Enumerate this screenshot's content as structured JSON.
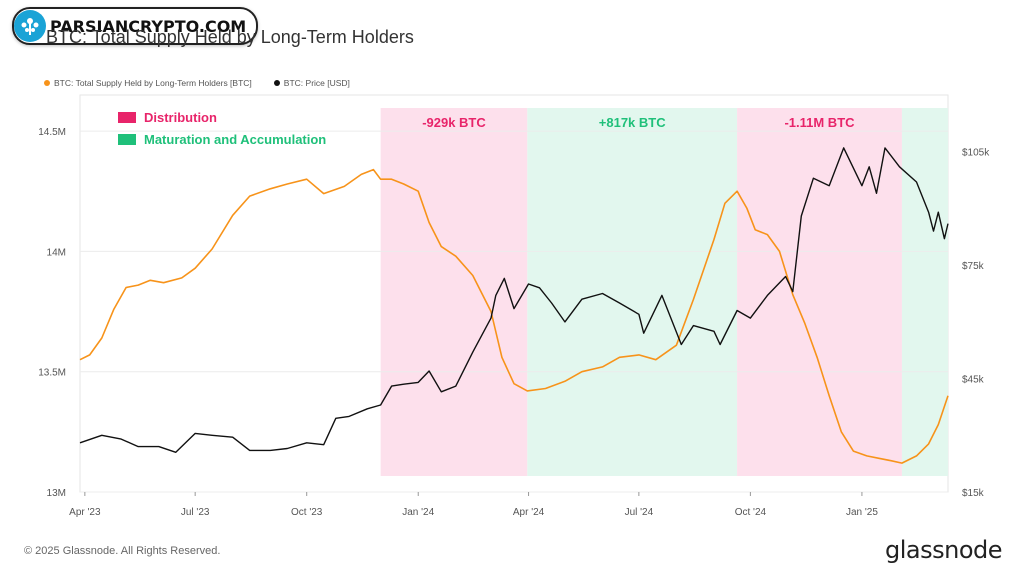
{
  "header": {
    "watermark_text": "PARSIANCRYPTO.COM",
    "title": "BTC: Total Supply Held by Long-Term Holders"
  },
  "legend": {
    "series_1": "BTC: Total Supply Held by Long-Term Holders [BTC]",
    "series_2": "BTC: Price [USD]"
  },
  "footer": {
    "copyright": "© 2025 Glassnode. All Rights Reserved.",
    "brand": "glassnode"
  },
  "colors": {
    "supply": "#f7931a",
    "price": "#111111",
    "distribution": "#fde0ec",
    "accumulation": "#e2f7ee",
    "distribution_text": "#e8246a",
    "accumulation_text": "#1fc07a"
  },
  "chart_data": {
    "type": "line",
    "title": "BTC: Total Supply Held by Long-Term Holders",
    "x_ticks": [
      "Apr '23",
      "Jul '23",
      "Oct '23",
      "Jan '24",
      "Apr '24",
      "Jul '24",
      "Oct '24",
      "Jan '25"
    ],
    "y_left_ticks": [
      "13M",
      "13.5M",
      "14M",
      "14.5M"
    ],
    "y_right_ticks": [
      "$15k",
      "$45k",
      "$75k",
      "$105k"
    ],
    "y_left_lim": [
      13000000,
      14650000
    ],
    "y_right_lim": [
      15000,
      120000
    ],
    "right_axis_scale": "linear",
    "x_range": [
      "2023-03-28",
      "2025-03-13"
    ],
    "legend_placement": "top-left",
    "box_legend": [
      {
        "label": "Distribution",
        "color": "#e8246a"
      },
      {
        "label": "Maturation and Accumulation",
        "color": "#1fc07a"
      }
    ],
    "regions": [
      {
        "type": "distribution",
        "start": "2023-12-01",
        "end": "2024-03-31",
        "label": "-929k BTC"
      },
      {
        "type": "accumulation",
        "start": "2024-03-31",
        "end": "2024-09-20",
        "label": "+817k BTC"
      },
      {
        "type": "distribution",
        "start": "2024-09-20",
        "end": "2025-02-03",
        "label": "-1.11M BTC"
      },
      {
        "type": "accumulation",
        "start": "2025-02-03",
        "end": "2025-03-13",
        "label": ""
      }
    ],
    "series": [
      {
        "name": "BTC: Total Supply Held by Long-Term Holders [BTC]",
        "axis": "left",
        "x": [
          "2023-03-28",
          "2023-04-05",
          "2023-04-15",
          "2023-04-25",
          "2023-05-05",
          "2023-05-15",
          "2023-05-25",
          "2023-06-05",
          "2023-06-20",
          "2023-07-01",
          "2023-07-15",
          "2023-08-01",
          "2023-08-15",
          "2023-09-01",
          "2023-09-15",
          "2023-10-01",
          "2023-10-15",
          "2023-11-01",
          "2023-11-15",
          "2023-11-25",
          "2023-12-01",
          "2023-12-10",
          "2023-12-20",
          "2024-01-01",
          "2024-01-10",
          "2024-01-20",
          "2024-02-01",
          "2024-02-15",
          "2024-03-01",
          "2024-03-10",
          "2024-03-20",
          "2024-03-31",
          "2024-04-15",
          "2024-05-01",
          "2024-05-15",
          "2024-06-01",
          "2024-06-15",
          "2024-07-01",
          "2024-07-15",
          "2024-08-01",
          "2024-08-15",
          "2024-09-01",
          "2024-09-10",
          "2024-09-20",
          "2024-09-28",
          "2024-10-05",
          "2024-10-15",
          "2024-10-25",
          "2024-11-05",
          "2024-11-15",
          "2024-11-25",
          "2024-12-05",
          "2024-12-15",
          "2024-12-25",
          "2025-01-05",
          "2025-01-15",
          "2025-01-25",
          "2025-02-03",
          "2025-02-15",
          "2025-02-25",
          "2025-03-05",
          "2025-03-13"
        ],
        "values": [
          13550000,
          13570000,
          13640000,
          13760000,
          13850000,
          13860000,
          13880000,
          13870000,
          13890000,
          13930000,
          14010000,
          14150000,
          14230000,
          14260000,
          14280000,
          14300000,
          14240000,
          14270000,
          14320000,
          14340000,
          14300000,
          14300000,
          14280000,
          14250000,
          14120000,
          14020000,
          13980000,
          13900000,
          13750000,
          13560000,
          13450000,
          13420000,
          13430000,
          13460000,
          13500000,
          13520000,
          13560000,
          13570000,
          13550000,
          13610000,
          13800000,
          14050000,
          14200000,
          14250000,
          14180000,
          14090000,
          14070000,
          14000000,
          13820000,
          13700000,
          13560000,
          13400000,
          13250000,
          13170000,
          13150000,
          13140000,
          13130000,
          13120000,
          13150000,
          13200000,
          13280000,
          13400000
        ]
      },
      {
        "name": "BTC: Price [USD]",
        "axis": "right",
        "x": [
          "2023-03-28",
          "2023-04-15",
          "2023-05-01",
          "2023-05-15",
          "2023-06-01",
          "2023-06-15",
          "2023-07-01",
          "2023-07-15",
          "2023-08-01",
          "2023-08-15",
          "2023-09-01",
          "2023-09-15",
          "2023-10-01",
          "2023-10-15",
          "2023-10-25",
          "2023-11-05",
          "2023-11-20",
          "2023-12-01",
          "2023-12-10",
          "2023-12-20",
          "2024-01-01",
          "2024-01-10",
          "2024-01-20",
          "2024-02-01",
          "2024-02-15",
          "2024-03-01",
          "2024-03-05",
          "2024-03-12",
          "2024-03-20",
          "2024-04-01",
          "2024-04-10",
          "2024-04-20",
          "2024-05-01",
          "2024-05-15",
          "2024-06-01",
          "2024-06-15",
          "2024-07-01",
          "2024-07-05",
          "2024-07-20",
          "2024-08-05",
          "2024-08-15",
          "2024-09-01",
          "2024-09-06",
          "2024-09-20",
          "2024-10-01",
          "2024-10-15",
          "2024-10-30",
          "2024-11-05",
          "2024-11-12",
          "2024-11-22",
          "2024-12-05",
          "2024-12-17",
          "2025-01-01",
          "2025-01-07",
          "2025-01-13",
          "2025-01-20",
          "2025-02-01",
          "2025-02-15",
          "2025-02-25",
          "2025-03-01",
          "2025-03-05",
          "2025-03-10",
          "2025-03-13"
        ],
        "values": [
          28000,
          30000,
          29000,
          27000,
          27000,
          25500,
          30500,
          30000,
          29500,
          26000,
          26000,
          26500,
          28000,
          27500,
          34500,
          35000,
          37000,
          38000,
          43000,
          43500,
          44000,
          47000,
          41500,
          43000,
          52000,
          61000,
          67000,
          71500,
          63500,
          70000,
          69000,
          65000,
          60000,
          66000,
          67500,
          65000,
          62000,
          57000,
          67000,
          54000,
          59000,
          57500,
          54000,
          63000,
          61000,
          67000,
          72000,
          68000,
          88000,
          98000,
          96000,
          106000,
          96000,
          101000,
          94000,
          106000,
          101000,
          97000,
          89000,
          84000,
          89000,
          82000,
          86000
        ]
      }
    ]
  }
}
